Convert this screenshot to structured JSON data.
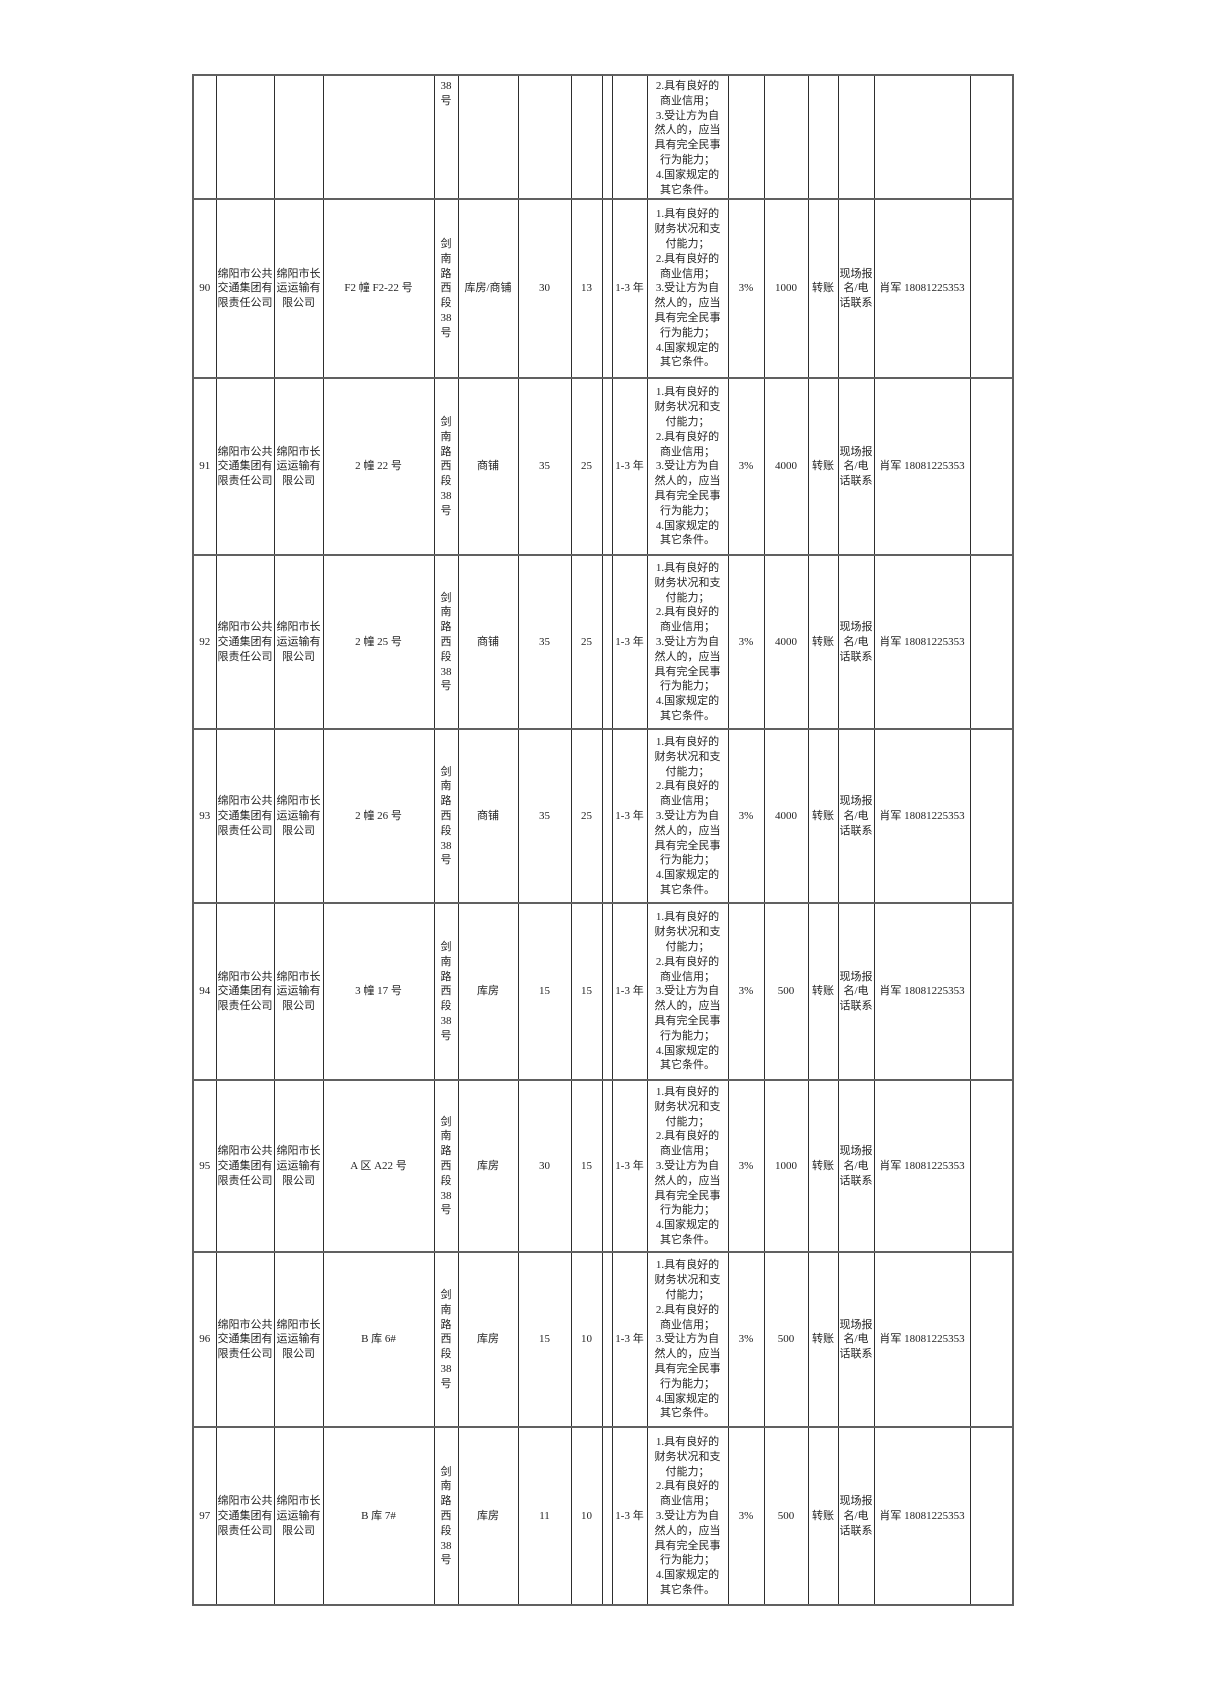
{
  "page": {
    "background_color": "#ffffff",
    "text_color": "#232323",
    "grid_line_color": "#2e2e2e",
    "row_line_color": "#606060"
  },
  "table": {
    "partial_row": [
      "",
      "",
      "",
      "",
      "38\n号",
      "",
      "",
      "",
      "",
      "",
      "2.具有良好的\n商业信用；\n3.受让方为自\n然人的，应当\n具有完全民事\n行为能力；\n4.国家规定的\n其它条件。",
      "",
      "",
      "",
      "",
      "",
      ""
    ],
    "rows": [
      [
        "90",
        "绵阳市公共\n交通集团有\n限责任公司",
        "绵阳市长\n运运输有\n限公司",
        "F2 幢 F2-22 号",
        "剑南\n路西\n段\n38\n号",
        "库房/商铺",
        "30",
        "13",
        "",
        "1-3 年",
        "1.具有良好的\n财务状况和支\n付能力；\n2.具有良好的\n商业信用；\n3.受让方为自\n然人的，应当\n具有完全民事\n行为能力；\n4.国家规定的\n其它条件。",
        "3%",
        "1000",
        "转账",
        "现场报\n名/电\n话联系",
        "肖军 18081225353",
        ""
      ],
      [
        "91",
        "绵阳市公共\n交通集团有\n限责任公司",
        "绵阳市长\n运运输有\n限公司",
        "2 幢 22 号",
        "剑南\n路西\n段\n38\n号",
        "商铺",
        "35",
        "25",
        "",
        "1-3 年",
        "1.具有良好的\n财务状况和支\n付能力；\n2.具有良好的\n商业信用；\n3.受让方为自\n然人的，应当\n具有完全民事\n行为能力；\n4.国家规定的\n其它条件。",
        "3%",
        "4000",
        "转账",
        "现场报\n名/电\n话联系",
        "肖军 18081225353",
        ""
      ],
      [
        "92",
        "绵阳市公共\n交通集团有\n限责任公司",
        "绵阳市长\n运运输有\n限公司",
        "2 幢 25 号",
        "剑南\n路西\n段\n38\n号",
        "商铺",
        "35",
        "25",
        "",
        "1-3 年",
        "1.具有良好的\n财务状况和支\n付能力；\n2.具有良好的\n商业信用；\n3.受让方为自\n然人的，应当\n具有完全民事\n行为能力；\n4.国家规定的\n其它条件。",
        "3%",
        "4000",
        "转账",
        "现场报\n名/电\n话联系",
        "肖军 18081225353",
        ""
      ],
      [
        "93",
        "绵阳市公共\n交通集团有\n限责任公司",
        "绵阳市长\n运运输有\n限公司",
        "2 幢 26 号",
        "剑南\n路西\n段\n38\n号",
        "商铺",
        "35",
        "25",
        "",
        "1-3 年",
        "1.具有良好的\n财务状况和支\n付能力；\n2.具有良好的\n商业信用；\n3.受让方为自\n然人的，应当\n具有完全民事\n行为能力；\n4.国家规定的\n其它条件。",
        "3%",
        "4000",
        "转账",
        "现场报\n名/电\n话联系",
        "肖军 18081225353",
        ""
      ],
      [
        "94",
        "绵阳市公共\n交通集团有\n限责任公司",
        "绵阳市长\n运运输有\n限公司",
        "3 幢 17 号",
        "剑南\n路西\n段\n38\n号",
        "库房",
        "15",
        "15",
        "",
        "1-3 年",
        "1.具有良好的\n财务状况和支\n付能力；\n2.具有良好的\n商业信用；\n3.受让方为自\n然人的，应当\n具有完全民事\n行为能力；\n4.国家规定的\n其它条件。",
        "3%",
        "500",
        "转账",
        "现场报\n名/电\n话联系",
        "肖军 18081225353",
        ""
      ],
      [
        "95",
        "绵阳市公共\n交通集团有\n限责任公司",
        "绵阳市长\n运运输有\n限公司",
        "A 区 A22 号",
        "剑南\n路西\n段\n38\n号",
        "库房",
        "30",
        "15",
        "",
        "1-3 年",
        "1.具有良好的\n财务状况和支\n付能力；\n2.具有良好的\n商业信用；\n3.受让方为自\n然人的，应当\n具有完全民事\n行为能力；\n4.国家规定的\n其它条件。",
        "3%",
        "1000",
        "转账",
        "现场报\n名/电\n话联系",
        "肖军 18081225353",
        ""
      ],
      [
        "96",
        "绵阳市公共\n交通集团有\n限责任公司",
        "绵阳市长\n运运输有\n限公司",
        "B 库 6#",
        "剑南\n路西\n段\n38\n号",
        "库房",
        "15",
        "10",
        "",
        "1-3 年",
        "1.具有良好的\n财务状况和支\n付能力；\n2.具有良好的\n商业信用；\n3.受让方为自\n然人的，应当\n具有完全民事\n行为能力；\n4.国家规定的\n其它条件。",
        "3%",
        "500",
        "转账",
        "现场报\n名/电\n话联系",
        "肖军 18081225353",
        ""
      ],
      [
        "97",
        "绵阳市公共\n交通集团有\n限责任公司",
        "绵阳市长\n运运输有\n限公司",
        "B 库 7#",
        "剑南\n路西\n段\n38\n号",
        "库房",
        "11",
        "10",
        "",
        "1-3 年",
        "1.具有良好的\n财务状况和支\n付能力；\n2.具有良好的\n商业信用；\n3.受让方为自\n然人的，应当\n具有完全民事\n行为能力；\n4.国家规定的\n其它条件。",
        "3%",
        "500",
        "转账",
        "现场报\n名/电\n话联系",
        "肖军 18081225353",
        ""
      ]
    ]
  }
}
